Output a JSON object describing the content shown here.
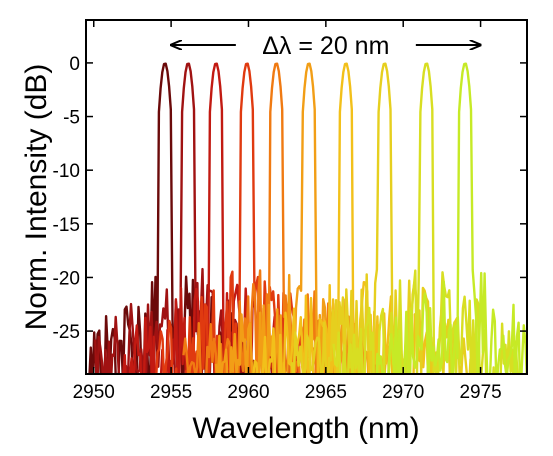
{
  "chart_data": {
    "type": "line",
    "xlabel": "Wavelength (nm)",
    "ylabel": "Norm. Intensity (dB)",
    "xlim": [
      2949.5,
      2978
    ],
    "ylim": [
      -29,
      4
    ],
    "xticks": [
      2950,
      2955,
      2960,
      2965,
      2970,
      2975
    ],
    "yticks": [
      0,
      -5,
      -10,
      -15,
      -20,
      -25
    ],
    "annotation": "Δλ = 20 nm",
    "annotation_span": [
      2955,
      2975
    ],
    "noise_floor_db": [
      -29,
      -18
    ],
    "series": [
      {
        "peak_x": 2954.6,
        "peak_y": 0,
        "color": "#6b0a0a"
      },
      {
        "peak_x": 2956.1,
        "peak_y": 0,
        "color": "#a01212"
      },
      {
        "peak_x": 2957.9,
        "peak_y": 0,
        "color": "#c21a12"
      },
      {
        "peak_x": 2959.9,
        "peak_y": 0,
        "color": "#e03a10"
      },
      {
        "peak_x": 2961.8,
        "peak_y": 0,
        "color": "#f07a12"
      },
      {
        "peak_x": 2963.9,
        "peak_y": 0,
        "color": "#f29e16"
      },
      {
        "peak_x": 2966.3,
        "peak_y": 0,
        "color": "#f2c01a"
      },
      {
        "peak_x": 2968.8,
        "peak_y": 0,
        "color": "#e6cf1e"
      },
      {
        "peak_x": 2971.5,
        "peak_y": 0,
        "color": "#d8de22"
      },
      {
        "peak_x": 2974.0,
        "peak_y": 0,
        "color": "#c6ea26"
      }
    ]
  }
}
